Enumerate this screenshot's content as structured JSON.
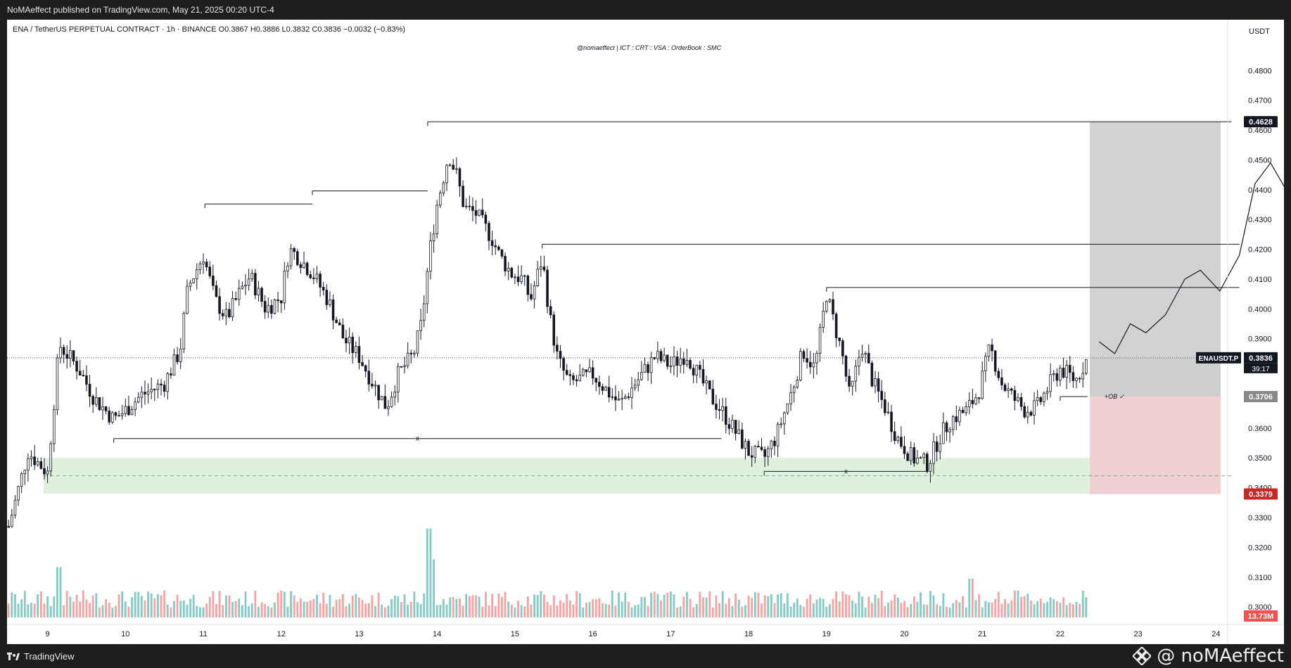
{
  "topbar": {
    "text": "NoMAeffect published on TradingView.com, May 21, 2025 00:20 UTC-4"
  },
  "bottombar": {
    "logo_text": "TradingView",
    "watermark": "@ noMAeffect",
    "watermark_icon": "binance-diamond-icon"
  },
  "colors": {
    "up": "#26a69a",
    "down": "#ef5350",
    "vol_up": "#80cbc4",
    "vol_down": "#f7a1a1",
    "gray_zone": "#d2d2d2",
    "red_zone": "#f0cfd3",
    "green_zone": "#dff0df",
    "stop_label": "#c62828",
    "black_label": "#131722",
    "ob_label": "#888888"
  },
  "chart_data": {
    "type": "candlestick",
    "header": "ENA / TetherUS PERPETUAL CONTRACT · 1h · BINANCE  O0.3867  H0.3886  L0.3832  C0.3836  −0.0032 (−0.83%)",
    "annotation": "@nomaeffect  | ICT : CRT : VSA : OrderBook : SMC",
    "currency": "USDT",
    "symbol": "ENAUSDT.P",
    "last_price": 0.3836,
    "countdown": "39:17",
    "ylim": [
      0.2965,
      0.4895
    ],
    "y_ticks": [
      "0.3000",
      "0.3100",
      "0.3200",
      "0.3300",
      "0.3400",
      "0.3500",
      "0.3600",
      "0.3700",
      "0.3800",
      "0.3900",
      "0.4000",
      "0.4100",
      "0.4200",
      "0.4300",
      "0.4400",
      "0.4500",
      "0.4600",
      "0.4700",
      "0.4800"
    ],
    "x_ticks": [
      {
        "label": "9",
        "day": 9
      },
      {
        "label": "10",
        "day": 10
      },
      {
        "label": "11",
        "day": 11
      },
      {
        "label": "12",
        "day": 12
      },
      {
        "label": "13",
        "day": 13
      },
      {
        "label": "14",
        "day": 14
      },
      {
        "label": "15",
        "day": 15
      },
      {
        "label": "16",
        "day": 16
      },
      {
        "label": "17",
        "day": 17
      },
      {
        "label": "18",
        "day": 18
      },
      {
        "label": "19",
        "day": 19
      },
      {
        "label": "20",
        "day": 20
      },
      {
        "label": "21",
        "day": 21
      },
      {
        "label": "22",
        "day": 22
      },
      {
        "label": "23",
        "day": 23
      },
      {
        "label": "24",
        "day": 24
      }
    ],
    "xlim_days": [
      8.48,
      24.15
    ],
    "price_path": [
      [
        8.5,
        0.327
      ],
      [
        8.75,
        0.352
      ],
      [
        9.0,
        0.345
      ],
      [
        9.15,
        0.388
      ],
      [
        9.4,
        0.38
      ],
      [
        9.6,
        0.37
      ],
      [
        9.85,
        0.363
      ],
      [
        10.0,
        0.366
      ],
      [
        10.2,
        0.371
      ],
      [
        10.5,
        0.375
      ],
      [
        10.7,
        0.386
      ],
      [
        10.8,
        0.407
      ],
      [
        11.0,
        0.418
      ],
      [
        11.15,
        0.403
      ],
      [
        11.3,
        0.397
      ],
      [
        11.5,
        0.407
      ],
      [
        11.6,
        0.411
      ],
      [
        11.8,
        0.4
      ],
      [
        12.0,
        0.404
      ],
      [
        12.1,
        0.42
      ],
      [
        12.2,
        0.418
      ],
      [
        12.4,
        0.412
      ],
      [
        12.6,
        0.403
      ],
      [
        12.8,
        0.39
      ],
      [
        13.0,
        0.384
      ],
      [
        13.2,
        0.374
      ],
      [
        13.35,
        0.367
      ],
      [
        13.5,
        0.378
      ],
      [
        13.7,
        0.385
      ],
      [
        13.8,
        0.395
      ],
      [
        13.9,
        0.418
      ],
      [
        14.0,
        0.435
      ],
      [
        14.15,
        0.452
      ],
      [
        14.25,
        0.445
      ],
      [
        14.35,
        0.434
      ],
      [
        14.5,
        0.432
      ],
      [
        14.7,
        0.424
      ],
      [
        14.8,
        0.418
      ],
      [
        14.95,
        0.412
      ],
      [
        15.1,
        0.41
      ],
      [
        15.2,
        0.403
      ],
      [
        15.35,
        0.417
      ],
      [
        15.45,
        0.397
      ],
      [
        15.55,
        0.383
      ],
      [
        15.7,
        0.375
      ],
      [
        16.0,
        0.378
      ],
      [
        16.2,
        0.372
      ],
      [
        16.35,
        0.368
      ],
      [
        16.6,
        0.377
      ],
      [
        16.8,
        0.384
      ],
      [
        17.0,
        0.381
      ],
      [
        17.2,
        0.385
      ],
      [
        17.35,
        0.378
      ],
      [
        17.5,
        0.371
      ],
      [
        17.65,
        0.366
      ],
      [
        17.8,
        0.36
      ],
      [
        18.0,
        0.352
      ],
      [
        18.2,
        0.35
      ],
      [
        18.35,
        0.357
      ],
      [
        18.55,
        0.372
      ],
      [
        18.7,
        0.386
      ],
      [
        18.85,
        0.38
      ],
      [
        19.0,
        0.405
      ],
      [
        19.2,
        0.385
      ],
      [
        19.3,
        0.37
      ],
      [
        19.45,
        0.388
      ],
      [
        19.6,
        0.375
      ],
      [
        19.75,
        0.367
      ],
      [
        19.9,
        0.357
      ],
      [
        20.1,
        0.35
      ],
      [
        20.3,
        0.348
      ],
      [
        20.45,
        0.357
      ],
      [
        20.6,
        0.363
      ],
      [
        20.8,
        0.366
      ],
      [
        20.95,
        0.372
      ],
      [
        21.1,
        0.387
      ],
      [
        21.25,
        0.375
      ],
      [
        21.4,
        0.37
      ],
      [
        21.55,
        0.366
      ],
      [
        21.7,
        0.367
      ],
      [
        21.85,
        0.374
      ],
      [
        22.0,
        0.38
      ],
      [
        22.2,
        0.376
      ],
      [
        22.35,
        0.3836
      ]
    ],
    "levels": [
      {
        "name": "high-1",
        "price": 0.4352,
        "from_day": 11.02,
        "to_day": 12.4
      },
      {
        "name": "high-2",
        "price": 0.4396,
        "from_day": 12.4,
        "to_day": 13.88
      },
      {
        "name": "high-3",
        "price": 0.4628,
        "from_day": 13.88,
        "to_day": 24.2
      },
      {
        "name": "high-4",
        "price": 0.4217,
        "from_day": 15.35,
        "to_day": 24.3
      },
      {
        "name": "high-5",
        "price": 0.4072,
        "from_day": 19.0,
        "to_day": 24.3
      },
      {
        "name": "low-1",
        "price": 0.3565,
        "from_day": 9.85,
        "to_day": 17.65,
        "marker": "x"
      },
      {
        "name": "low-2",
        "price": 0.3455,
        "from_day": 18.2,
        "to_day": 20.3,
        "marker": "x"
      },
      {
        "name": "ob-line",
        "price": 0.3706,
        "from_day": 22.0,
        "to_day": 22.35
      }
    ],
    "zones": [
      {
        "name": "demand-zone",
        "from_price": 0.338,
        "to_price": 0.35,
        "from_day": 8.95,
        "to_day": 24.2
      },
      {
        "name": "target-zone",
        "from_price": 0.3836,
        "to_price": 0.4628,
        "from_day": 22.38,
        "to_day": 24.2
      },
      {
        "name": "entry-zone",
        "from_price": 0.3706,
        "to_price": 0.3836,
        "from_day": 22.38,
        "to_day": 24.2
      },
      {
        "name": "stop-zone",
        "from_price": 0.3379,
        "to_price": 0.3706,
        "from_day": 22.38,
        "to_day": 24.2
      }
    ],
    "ob_label": "+OB ✓",
    "projection": [
      [
        22.5,
        0.389
      ],
      [
        22.7,
        0.385
      ],
      [
        22.9,
        0.395
      ],
      [
        23.1,
        0.392
      ],
      [
        23.35,
        0.398
      ],
      [
        23.6,
        0.41
      ],
      [
        23.8,
        0.413
      ],
      [
        24.05,
        0.406
      ],
      [
        24.3,
        0.418
      ],
      [
        24.5,
        0.442
      ],
      [
        24.7,
        0.449
      ],
      [
        24.9,
        0.44
      ],
      [
        25.05,
        0.438
      ],
      [
        25.3,
        0.459
      ]
    ],
    "price_labels": [
      {
        "value": "0.4628",
        "price": 0.4628,
        "style": "black"
      },
      {
        "value": "0.3836",
        "price": 0.3836,
        "style": "black"
      },
      {
        "value": "0.3706",
        "price": 0.3706,
        "style": "gray"
      },
      {
        "value": "0.3379",
        "price": 0.3379,
        "style": "red"
      }
    ],
    "volume_label": "13.73M"
  }
}
